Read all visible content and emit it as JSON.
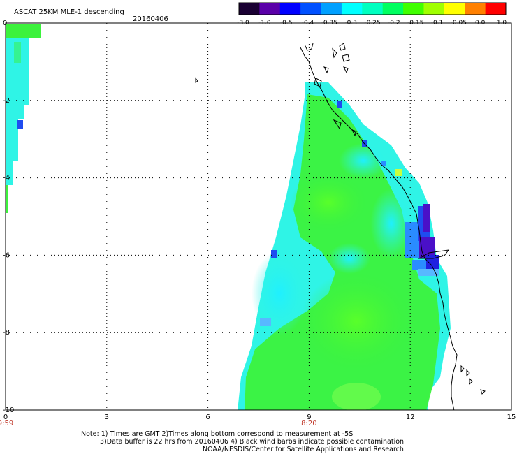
{
  "header": {
    "title": "ASCAT 25KM MLE-1 descending",
    "date": "20160406"
  },
  "colorbar": {
    "labels": [
      "-3.0",
      "-1.0",
      "-0.5",
      "-0.4",
      "-0.35",
      "-0.3",
      "-0.25",
      "-0.2",
      "-0.15",
      "-0.1",
      "-0.05",
      "0.0",
      "1.0"
    ],
    "colors": [
      "#1a0033",
      "#5a00a8",
      "#0000ff",
      "#0050ff",
      "#00a0ff",
      "#00ffff",
      "#00ffc0",
      "#00ff60",
      "#40ff00",
      "#a0ff00",
      "#ffff00",
      "#ff8000",
      "#ff0000"
    ]
  },
  "map": {
    "x_ticks": [
      "0",
      "3",
      "6",
      "9",
      "12",
      "15"
    ],
    "y_ticks": [
      "0",
      "-2",
      "-4",
      "-6",
      "-8",
      "-10"
    ],
    "x_range": [
      0,
      15
    ],
    "y_range": [
      -10,
      0
    ],
    "time_labels": [
      {
        "text": "9:59",
        "lon": 0
      },
      {
        "text": "8:20",
        "lon": 9
      }
    ],
    "colors": {
      "land_line": "#000000",
      "grid": "#000000",
      "time_label": "#c0392b",
      "swath_green": "#3cf23c",
      "swath_cyan": "#2ff4e6",
      "swath_blue": "#1f4cf0",
      "swath_purple": "#4a10c8"
    }
  },
  "notes": {
    "line1": "Note: 1) Times are GMT 2)Times along bottom correspond to measurement at -5S",
    "line2": "3)Data buffer is 22 hrs from 20160406 4) Black wind barbs indicate possible contamination",
    "line3": "NOAA/NESDIS/Center for Satellite Applications and Research"
  }
}
